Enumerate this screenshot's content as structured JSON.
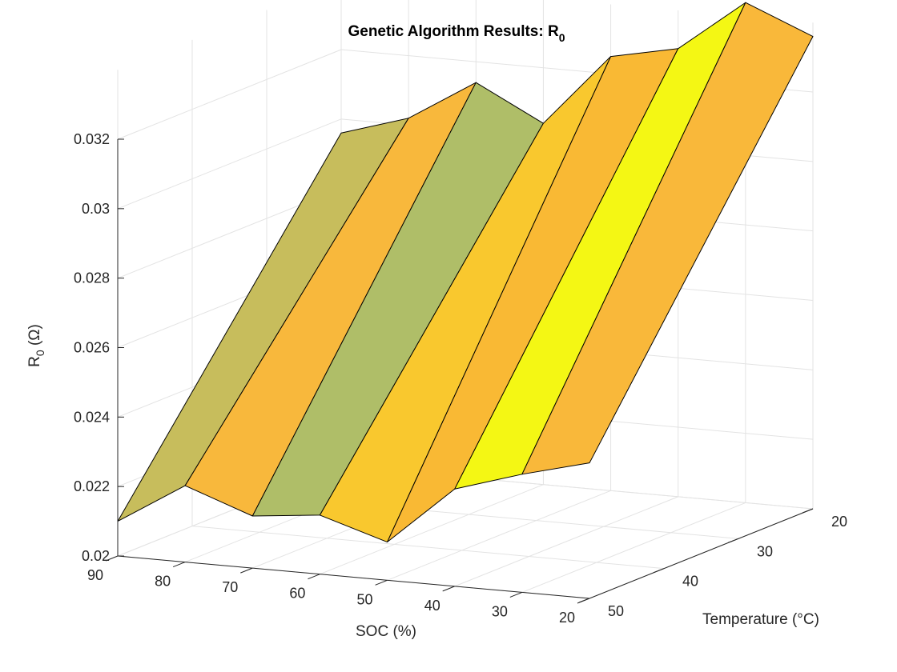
{
  "chart_data": {
    "type": "surface",
    "title": "Genetic Algorithm Results: R",
    "title_subscript": "0",
    "xlabel": "SOC (%)",
    "ylabel": "Temperature (°C)",
    "zlabel": "R",
    "zlabel_subscript": "0",
    "zlabel_unit": " (Ω)",
    "soc": [
      90,
      80,
      70,
      60,
      50,
      40,
      30,
      20
    ],
    "temperature": [
      20,
      50
    ],
    "soc_ticks": [
      "90",
      "80",
      "70",
      "60",
      "50",
      "40",
      "30",
      "20"
    ],
    "temperature_ticks": [
      "20",
      "30",
      "40",
      "50"
    ],
    "r0_ticks": [
      "0.02",
      "0.022",
      "0.024",
      "0.026",
      "0.028",
      "0.03",
      "0.032"
    ],
    "zlim": [
      0.02,
      0.032
    ],
    "grid": true,
    "r0_at_temp_20": [
      0.0296,
      0.0302,
      0.0314,
      0.0304,
      0.0325,
      0.0329,
      0.0344,
      0.0336
    ],
    "r0_at_temp_50": [
      0.021,
      0.0222,
      0.0215,
      0.0217,
      0.0211,
      0.0228,
      0.0234,
      0.0239
    ],
    "face_colors": [
      "#c7bd5c",
      "#f8b83c",
      "#afbe68",
      "#f9c82e",
      "#f9b934",
      "#f4f714",
      "#f9b83a"
    ]
  }
}
